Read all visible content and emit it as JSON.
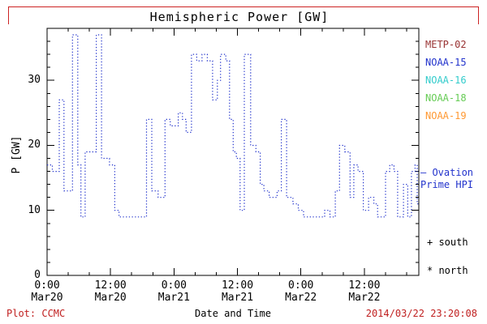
{
  "colors": {
    "accent_red": "#c02020",
    "frame_red": "#cc2222",
    "line_blue": "#2233cc",
    "axis_black": "#000000"
  },
  "annotations": {
    "ovation_line1": "— Ovation",
    "ovation_line2": "Prime HPI",
    "south_marker": "+ south",
    "north_marker": "* north"
  },
  "legend": {
    "items": [
      {
        "label": "METP-02",
        "color": "#993333"
      },
      {
        "label": "NOAA-15",
        "color": "#2233cc"
      },
      {
        "label": "NOAA-16",
        "color": "#33cccc"
      },
      {
        "label": "NOAA-18",
        "color": "#66cc55"
      },
      {
        "label": "NOAA-19",
        "color": "#ff9933"
      }
    ]
  },
  "footer": {
    "credit": "Plot: CCMC",
    "timestamp": "2014/03/22 23:20:08"
  },
  "chart_data": {
    "type": "line",
    "title": "Hemispheric Power [GW]",
    "xlabel": "Date and Time",
    "ylabel": "P [GW]",
    "series_name": "Ovation Prime HPI",
    "line_style": "dotted step",
    "line_color": "#2233cc",
    "grid": false,
    "ylim": [
      0,
      38
    ],
    "xlim_hours": [
      0,
      70.3
    ],
    "x_origin": "Mar20 0:00",
    "yticks": [
      0,
      10,
      20,
      30
    ],
    "y_minor_step": 2,
    "x_minor_step_hours": 4,
    "xticks": [
      {
        "hour": 0,
        "time": "0:00",
        "date": "Mar20"
      },
      {
        "hour": 12,
        "time": "12:00",
        "date": "Mar20"
      },
      {
        "hour": 24,
        "time": "0:00",
        "date": "Mar21"
      },
      {
        "hour": 36,
        "time": "12:00",
        "date": "Mar21"
      },
      {
        "hour": 48,
        "time": "0:00",
        "date": "Mar22"
      },
      {
        "hour": 60,
        "time": "12:00",
        "date": "Mar22"
      }
    ],
    "step_points": [
      [
        0,
        17
      ],
      [
        1,
        16
      ],
      [
        2.3,
        27
      ],
      [
        3.2,
        13
      ],
      [
        4.8,
        37
      ],
      [
        5.8,
        17
      ],
      [
        6.4,
        9
      ],
      [
        7.2,
        19
      ],
      [
        9.3,
        37
      ],
      [
        10.3,
        18
      ],
      [
        11.8,
        17
      ],
      [
        12.8,
        10
      ],
      [
        13.6,
        9
      ],
      [
        18.8,
        24
      ],
      [
        19.8,
        13
      ],
      [
        21,
        12
      ],
      [
        22.3,
        24
      ],
      [
        23.3,
        23
      ],
      [
        24.8,
        25
      ],
      [
        25.6,
        24
      ],
      [
        26.3,
        22
      ],
      [
        27.3,
        34
      ],
      [
        28.3,
        33
      ],
      [
        29.3,
        34
      ],
      [
        30.3,
        33
      ],
      [
        31.3,
        27
      ],
      [
        32.2,
        30
      ],
      [
        32.8,
        34
      ],
      [
        33.8,
        33
      ],
      [
        34.5,
        24
      ],
      [
        35.2,
        19
      ],
      [
        35.8,
        18
      ],
      [
        36.5,
        10
      ],
      [
        37.3,
        34
      ],
      [
        38.5,
        20
      ],
      [
        39.5,
        19
      ],
      [
        40.3,
        14
      ],
      [
        41,
        13
      ],
      [
        42,
        12
      ],
      [
        43.5,
        13
      ],
      [
        44.3,
        24
      ],
      [
        45.3,
        12
      ],
      [
        46.5,
        11
      ],
      [
        47.5,
        10
      ],
      [
        48.5,
        9
      ],
      [
        52.5,
        10
      ],
      [
        53.5,
        9
      ],
      [
        54.5,
        13
      ],
      [
        55.3,
        20
      ],
      [
        56.3,
        19
      ],
      [
        57.3,
        12
      ],
      [
        58,
        17
      ],
      [
        58.8,
        16
      ],
      [
        59.8,
        10
      ],
      [
        60.8,
        12
      ],
      [
        61.8,
        11
      ],
      [
        62.5,
        9
      ],
      [
        64,
        16
      ],
      [
        64.8,
        17
      ],
      [
        65.6,
        16
      ],
      [
        66.3,
        9
      ],
      [
        67.4,
        14
      ],
      [
        68.2,
        9
      ],
      [
        68.9,
        16
      ],
      [
        69.6,
        17
      ],
      [
        70,
        11
      ],
      [
        70.3,
        11
      ]
    ]
  }
}
